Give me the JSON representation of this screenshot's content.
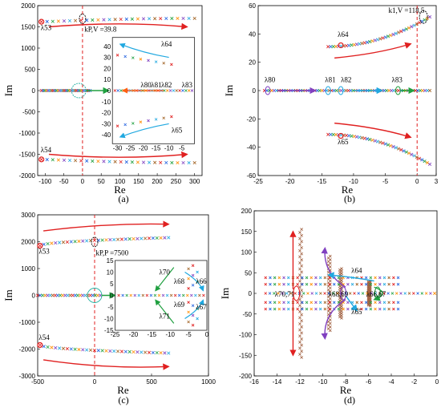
{
  "chart_data": [
    {
      "type": "scatter",
      "panel": "(a)",
      "xlabel": "Re",
      "ylabel": "Im",
      "xlim": [
        -120,
        320
      ],
      "ylim": [
        -2000,
        2000
      ],
      "xticks": [
        "-100",
        "-50",
        "0",
        "50",
        "100",
        "150",
        "200",
        "250",
        "300"
      ],
      "yticks": [
        "-2000",
        "-1500",
        "-1000",
        "-500",
        "0",
        "500",
        "1000",
        "1500",
        "2000"
      ],
      "x_ticks_v": [
        -100,
        -50,
        0,
        50,
        100,
        150,
        200,
        250,
        300
      ],
      "y_ticks_v": [
        -2000,
        -1500,
        -1000,
        -500,
        0,
        500,
        1000,
        1500,
        2000
      ],
      "branches": [
        {
          "x0": -110,
          "x1": 300,
          "y0": 1620,
          "bend": 1700,
          "n": 28
        },
        {
          "x0": -110,
          "x1": 300,
          "y0": -1620,
          "bend": -1700,
          "n": 28
        }
      ],
      "real_span": [
        -110,
        20
      ],
      "vline": 0,
      "labels": [
        {
          "text": "λ53",
          "x": -112,
          "y": 1420
        },
        {
          "text": "λ54",
          "x": -112,
          "y": -1450
        },
        {
          "text": "kP,V =39.8",
          "x": 5,
          "y": 1390
        }
      ],
      "inset": {
        "xlim": [
          -32,
          0
        ],
        "ylim": [
          -48,
          48
        ],
        "xticks": [
          "-30",
          "-25",
          "-20",
          "-15",
          "-10",
          "-5"
        ],
        "x_ticks_v": [
          -30,
          -25,
          -20,
          -15,
          -10,
          -5
        ],
        "yticks": [
          "-40",
          "-30",
          "-20",
          "-10",
          "0",
          "10",
          "20",
          "30",
          "40"
        ],
        "y_ticks_v": [
          -40,
          -30,
          -20,
          -10,
          0,
          10,
          20,
          30,
          40
        ],
        "labels": [
          {
            "text": "λ64",
            "x": -13,
            "y": 40
          },
          {
            "text": "λ80",
            "x": -21,
            "y": 3
          },
          {
            "text": "λ81",
            "x": -17,
            "y": 3
          },
          {
            "text": "λ82",
            "x": -13,
            "y": 3
          },
          {
            "text": "λ83",
            "x": -5,
            "y": 3
          },
          {
            "text": "λ65",
            "x": -9,
            "y": -38
          }
        ]
      }
    },
    {
      "type": "scatter",
      "panel": "(b)",
      "xlabel": "Re",
      "ylabel": "Im",
      "xlim": [
        -25,
        3
      ],
      "ylim": [
        -60,
        60
      ],
      "xticks": [
        "-25",
        "-20",
        "-15",
        "-10",
        "-5",
        "0",
        "3"
      ],
      "x_ticks_v": [
        -25,
        -20,
        -15,
        -10,
        -5,
        0,
        3
      ],
      "yticks": [
        "-60",
        "-40",
        "-20",
        "0",
        "20",
        "40",
        "60"
      ],
      "y_ticks_v": [
        -60,
        -40,
        -20,
        0,
        20,
        40,
        60
      ],
      "branches": [
        {
          "x0": -14,
          "x1": 2,
          "y0": 31,
          "y1": 52,
          "n": 40
        },
        {
          "x0": -14,
          "x1": 2,
          "y0": -31,
          "y1": -52,
          "n": 40
        }
      ],
      "real_span": [
        -25,
        2
      ],
      "vline": 0,
      "labels": [
        {
          "text": "k1,V =118.5",
          "x": -4.5,
          "y": 55
        },
        {
          "text": "λ64",
          "x": -12.5,
          "y": 38
        },
        {
          "text": "λ80",
          "x": -24,
          "y": 6
        },
        {
          "text": "λ81",
          "x": -14.5,
          "y": 6
        },
        {
          "text": "λ82",
          "x": -12,
          "y": 6
        },
        {
          "text": "λ83",
          "x": -4,
          "y": 6
        },
        {
          "text": "λ65",
          "x": -12.5,
          "y": -38
        }
      ]
    },
    {
      "type": "scatter",
      "panel": "(c)",
      "xlabel": "Re",
      "ylabel": "Im",
      "xlim": [
        -500,
        1000
      ],
      "ylim": [
        -3000,
        3000
      ],
      "xticks": [
        "-500",
        "0",
        "500",
        "1000"
      ],
      "x_ticks_v": [
        -500,
        0,
        500,
        1000
      ],
      "yticks": [
        "-3000",
        "-2000",
        "-1000",
        "0",
        "1000",
        "2000",
        "3000"
      ],
      "y_ticks_v": [
        -3000,
        -2000,
        -1000,
        0,
        1000,
        2000,
        3000
      ],
      "branches": [
        {
          "x0": -480,
          "x1": 650,
          "y0": 1850,
          "y1": 2150,
          "n": 34
        },
        {
          "x0": -480,
          "x1": 650,
          "y0": -1850,
          "y1": -2150,
          "n": 34
        }
      ],
      "real_span": [
        -500,
        50
      ],
      "vline": 0,
      "labels": [
        {
          "text": "λ53",
          "x": -490,
          "y": 1550
        },
        {
          "text": "kP,P =7500",
          "x": 10,
          "y": 1500
        },
        {
          "text": "λ54",
          "x": -490,
          "y": -1650
        }
      ],
      "inset": {
        "xlim": [
          -25,
          0
        ],
        "ylim": [
          -15,
          15
        ],
        "xticks": [
          "-25",
          "-20",
          "-15",
          "-10",
          "-5",
          "0"
        ],
        "x_ticks_v": [
          -25,
          -20,
          -15,
          -10,
          -5,
          0
        ],
        "yticks": [
          "-15",
          "-10",
          "-5",
          "0",
          "5",
          "10",
          "15"
        ],
        "y_ticks_v": [
          -15,
          -10,
          -5,
          0,
          5,
          10,
          15
        ],
        "labels": [
          {
            "text": "λ70",
            "x": -13,
            "y": 9
          },
          {
            "text": "λ68",
            "x": -9,
            "y": 5
          },
          {
            "text": "λ66",
            "x": -3,
            "y": 5
          },
          {
            "text": "λ69",
            "x": -9,
            "y": -5
          },
          {
            "text": "λ67",
            "x": -3,
            "y": -6
          },
          {
            "text": "λ71",
            "x": -13,
            "y": -10
          }
        ]
      }
    },
    {
      "type": "scatter",
      "panel": "(d)",
      "xlabel": "Re",
      "ylabel": "Im",
      "xlim": [
        -16,
        0
      ],
      "ylim": [
        -200,
        200
      ],
      "xticks": [
        "-16",
        "-14",
        "-12",
        "-10",
        "-8",
        "-6",
        "-4",
        "-2",
        "0"
      ],
      "x_ticks_v": [
        -16,
        -14,
        -12,
        -10,
        -8,
        -6,
        -4,
        -2,
        0
      ],
      "yticks": [
        "-200",
        "-150",
        "-100",
        "-50",
        "0",
        "50",
        "100",
        "150",
        "200"
      ],
      "y_ticks_v": [
        -200,
        -150,
        -100,
        -50,
        0,
        50,
        100,
        150,
        200
      ],
      "labels": [
        {
          "text": "λ70,71",
          "x": -14.2,
          "y": -8
        },
        {
          "text": "λ68,69",
          "x": -9.5,
          "y": -8
        },
        {
          "text": "λ64",
          "x": -7.5,
          "y": 50
        },
        {
          "text": "λ66,67",
          "x": -6.2,
          "y": -8
        },
        {
          "text": "λ65",
          "x": -7.5,
          "y": -50
        }
      ]
    }
  ]
}
